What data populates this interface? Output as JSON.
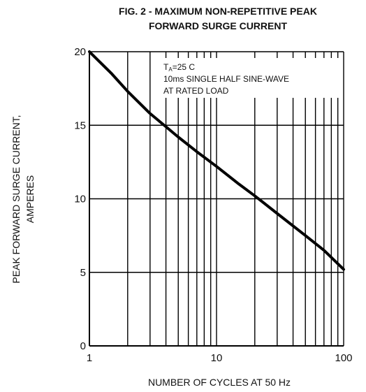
{
  "chart_data": {
    "type": "line",
    "title_lines": [
      "FIG. 2 - MAXIMUM NON-REPETITIVE PEAK",
      "FORWARD SURGE CURRENT"
    ],
    "xlabel": "NUMBER OF CYCLES AT 50 Hz",
    "ylabel_lines": [
      "PEAK FORWARD SURGE CURRENT,",
      "AMPERES"
    ],
    "x_scale": "log",
    "xlim": [
      1,
      100
    ],
    "ylim": [
      0,
      20
    ],
    "x_ticks": [
      1,
      10,
      100
    ],
    "x_tick_labels": [
      "1",
      "10",
      "100"
    ],
    "y_ticks": [
      0,
      5,
      10,
      15,
      20
    ],
    "y_tick_labels": [
      "0",
      "5",
      "10",
      "15",
      "20"
    ],
    "grid": true,
    "annotation": {
      "ta_main": "T",
      "ta_sub": "A",
      "ta_rest": "=25 C",
      "line2": "10ms SINGLE HALF SINE-WAVE",
      "line3": "AT RATED LOAD"
    },
    "series": [
      {
        "x": [
          1,
          1.5,
          2,
          3,
          4,
          5,
          7,
          10,
          15,
          20,
          30,
          50,
          70,
          100
        ],
        "y": [
          20,
          18.5,
          17.3,
          15.8,
          14.9,
          14.2,
          13.2,
          12.2,
          11.0,
          10.2,
          9.0,
          7.5,
          6.5,
          5.2
        ]
      }
    ]
  }
}
